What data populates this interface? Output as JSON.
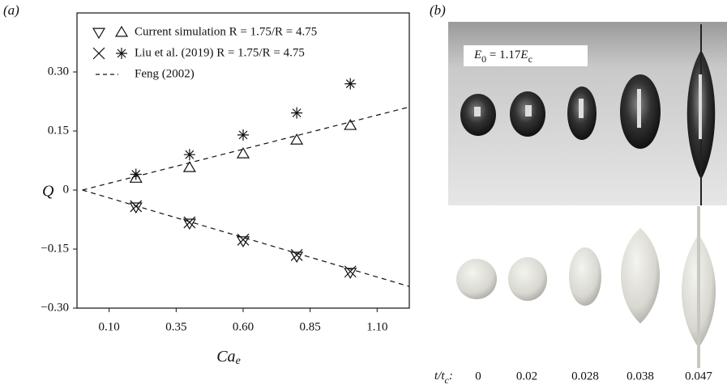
{
  "chart_data": {
    "type": "scatter",
    "panel_label": "(a)",
    "ylabel": "Q",
    "xlabel": "Ca",
    "xlabel_sub": "e",
    "xlim": [
      -0.02,
      1.22
    ],
    "ylim": [
      -0.3,
      0.45
    ],
    "xticks": [
      {
        "value": 0.1,
        "label": "0.10"
      },
      {
        "value": 0.35,
        "label": "0.35"
      },
      {
        "value": 0.6,
        "label": "0.60"
      },
      {
        "value": 0.85,
        "label": "0.85"
      },
      {
        "value": 1.1,
        "label": "1.10"
      }
    ],
    "yticks": [
      {
        "value": -0.3,
        "label": "−0.30"
      },
      {
        "value": -0.15,
        "label": "−0.15"
      },
      {
        "value": 0,
        "label": "0"
      },
      {
        "value": 0.15,
        "label": "0.15"
      },
      {
        "value": 0.3,
        "label": "0.30"
      }
    ],
    "series": [
      {
        "marker": "up-triangle",
        "color": "#111",
        "x": [
          0.2,
          0.4,
          0.6,
          0.8,
          1.0
        ],
        "values": [
          0.03,
          0.057,
          0.092,
          0.127,
          0.164
        ]
      },
      {
        "marker": "asterisk",
        "color": "#111",
        "x": [
          0.2,
          0.4,
          0.6,
          0.8,
          1.0
        ],
        "values": [
          0.04,
          0.09,
          0.14,
          0.196,
          0.27
        ]
      },
      {
        "marker": "down-triangle",
        "color": "#111",
        "x": [
          0.2,
          0.4,
          0.6,
          0.8,
          1.0
        ],
        "values": [
          -0.043,
          -0.084,
          -0.129,
          -0.168,
          -0.209
        ]
      },
      {
        "marker": "x",
        "color": "#111",
        "x": [
          0.2,
          0.4,
          0.6,
          0.8,
          1.0
        ],
        "values": [
          -0.041,
          -0.082,
          -0.126,
          -0.165,
          -0.207
        ]
      },
      {
        "marker": "dashed-line",
        "color": "#111",
        "x": [
          0,
          1.22
        ],
        "values": [
          0,
          0.211
        ]
      },
      {
        "marker": "dashed-line",
        "color": "#111",
        "x": [
          0,
          1.22
        ],
        "values": [
          0,
          -0.245
        ]
      }
    ],
    "legend": [
      {
        "label": "Current simulation R = 1.75/R = 4.75",
        "markers": [
          "down-triangle",
          "up-triangle"
        ]
      },
      {
        "label": "Liu et al. (2019) R = 1.75/R = 4.75",
        "markers": [
          "x",
          "asterisk"
        ]
      },
      {
        "label": "Feng (2002)",
        "markers": [
          "dashed-line"
        ]
      }
    ]
  },
  "panel_b": {
    "panel_label": "(b)",
    "annotation_parts": [
      "E",
      "0",
      " = 1.17",
      "E",
      "c"
    ],
    "time_label_parts": [
      "t/t",
      "c",
      ":"
    ],
    "times": [
      0,
      0.02,
      0.028,
      0.038,
      0.047
    ]
  }
}
